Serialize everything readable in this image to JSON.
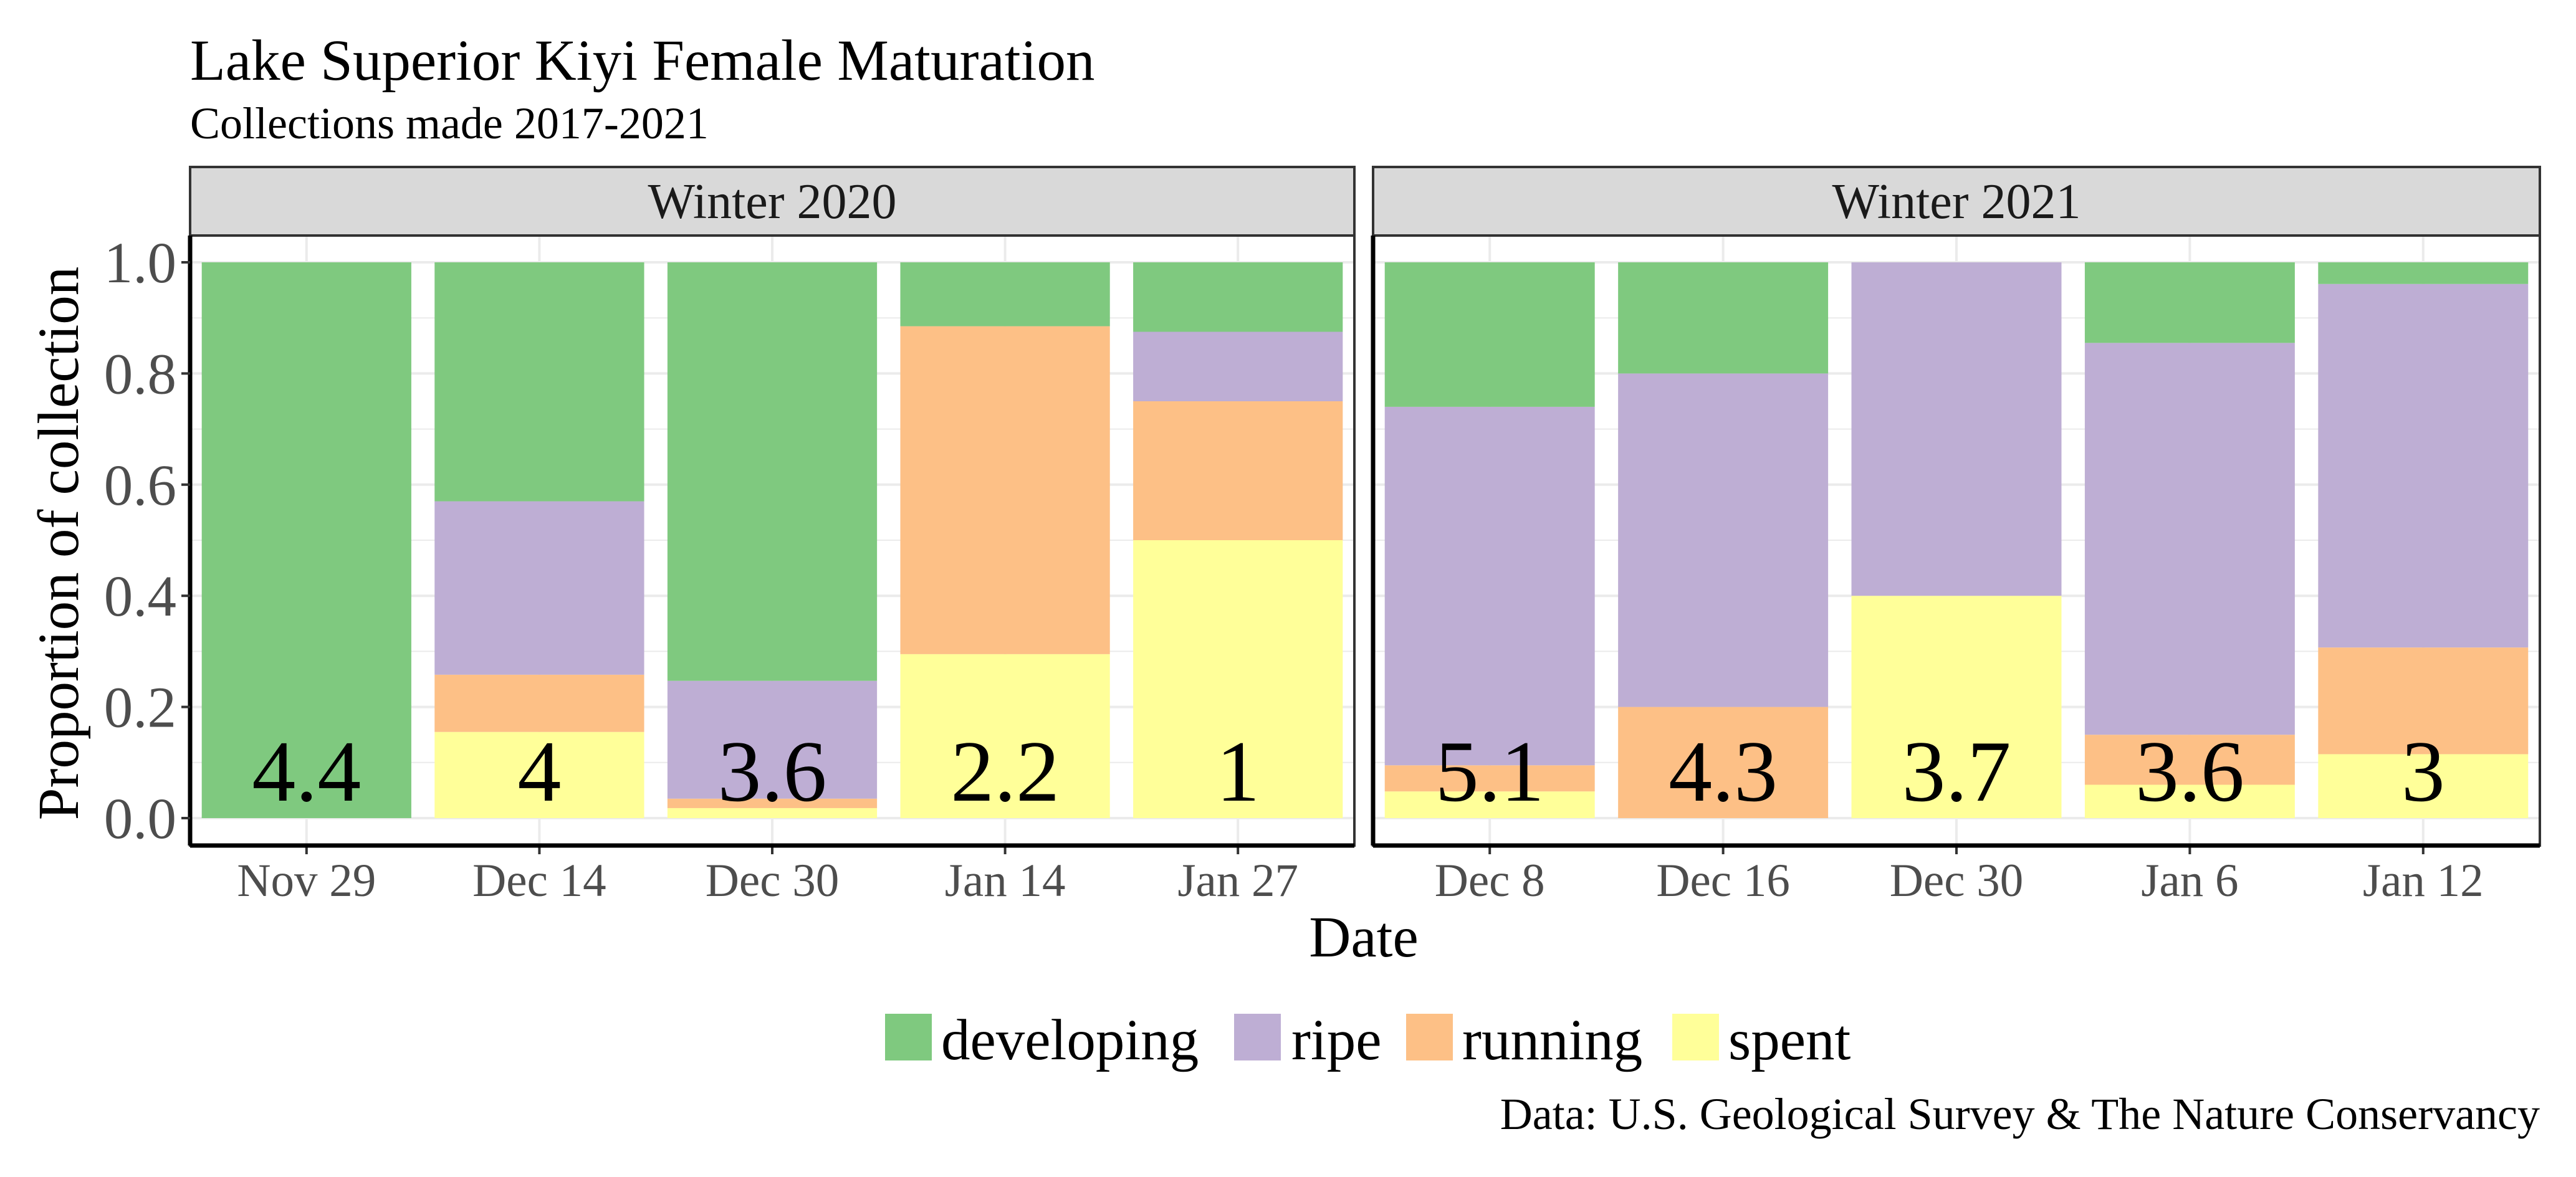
{
  "chart_data": {
    "type": "bar",
    "stacked": true,
    "title": "Lake Superior Kiyi Female Maturation",
    "subtitle": "Collections made 2017-2021",
    "xlabel": "Date",
    "ylabel": "Proportion of collection",
    "caption": "Data: U.S. Geological Survey & The Nature Conservancy",
    "ylim": [
      0,
      1
    ],
    "yticks": [
      "0.0",
      "0.2",
      "0.4",
      "0.6",
      "0.8",
      "1.0"
    ],
    "grid": true,
    "legend": "bottom",
    "stage_order": [
      "spent",
      "running",
      "ripe",
      "developing"
    ],
    "legend_items": [
      {
        "name": "developing",
        "color": "#7fc97f"
      },
      {
        "name": "ripe",
        "color": "#beaed4"
      },
      {
        "name": "running",
        "color": "#fdc086"
      },
      {
        "name": "spent",
        "color": "#ffff99"
      }
    ],
    "panels": [
      {
        "strip": "Winter 2020",
        "categories": [
          "Nov 29",
          "Dec 14",
          "Dec 30",
          "Jan 14",
          "Jan 27"
        ],
        "labels": [
          "4.4",
          "4",
          "3.6",
          "2.2",
          "1"
        ],
        "series": [
          {
            "name": "spent",
            "values": [
              0.0,
              0.155,
              0.018,
              0.295,
              0.5
            ]
          },
          {
            "name": "running",
            "values": [
              0.0,
              0.103,
              0.017,
              0.59,
              0.25
            ]
          },
          {
            "name": "ripe",
            "values": [
              0.0,
              0.312,
              0.212,
              0.0,
              0.125
            ]
          },
          {
            "name": "developing",
            "values": [
              1.0,
              0.43,
              0.753,
              0.115,
              0.125
            ]
          }
        ]
      },
      {
        "strip": "Winter 2021",
        "categories": [
          "Dec 8",
          "Dec 16",
          "Dec 30",
          "Jan 6",
          "Jan 12"
        ],
        "labels": [
          "5.1",
          "4.3",
          "3.7",
          "3.6",
          "3"
        ],
        "series": [
          {
            "name": "spent",
            "values": [
              0.048,
              0.0,
              0.4,
              0.06,
              0.115
            ]
          },
          {
            "name": "running",
            "values": [
              0.047,
              0.2,
              0.0,
              0.09,
              0.192
            ]
          },
          {
            "name": "ripe",
            "values": [
              0.645,
              0.6,
              0.6,
              0.705,
              0.654
            ]
          },
          {
            "name": "developing",
            "values": [
              0.26,
              0.2,
              0.0,
              0.145,
              0.039
            ]
          }
        ]
      }
    ]
  }
}
